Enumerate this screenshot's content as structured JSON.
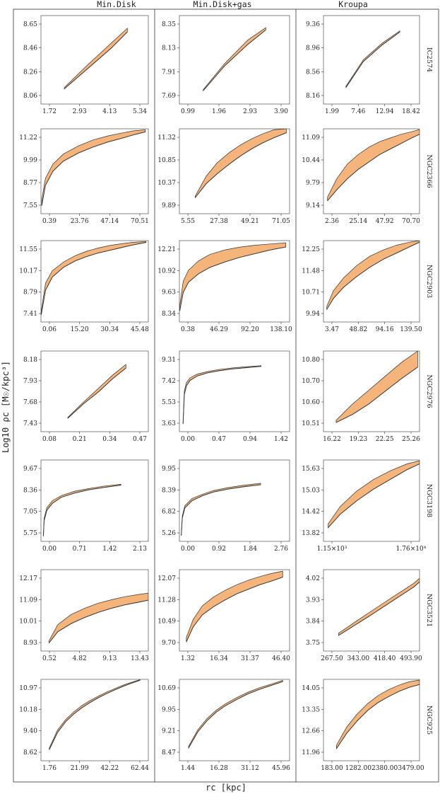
{
  "figure": {
    "column_titles": [
      "Min.Disk",
      "Min.Disk+gas",
      "Kroupa"
    ],
    "y_axis_title": "Log10 ρc [M☉/kpc³]",
    "x_axis_title": "rc [kpc]"
  },
  "colors": {
    "band_fill": "#f5b47a",
    "line": "#333333"
  },
  "chart_data": [
    {
      "type": "area",
      "galaxy": "IC2574",
      "column": "Min.Disk",
      "xticks": [
        "1.72",
        "2.93",
        "4.13",
        "5.34"
      ],
      "yticks": [
        "8.65",
        "8.46",
        "8.26",
        "8.06"
      ],
      "xlim": [
        1.2,
        5.8
      ],
      "ylim": [
        8.0,
        8.7
      ],
      "x": [
        2.2,
        3.2,
        4.2,
        4.9
      ],
      "y_low": [
        8.12,
        8.28,
        8.44,
        8.57
      ],
      "y_high": [
        8.13,
        8.31,
        8.48,
        8.6
      ]
    },
    {
      "type": "area",
      "galaxy": "IC2574",
      "column": "Min.Disk+gas",
      "xticks": [
        "0.99",
        "1.96",
        "2.93",
        "3.90"
      ],
      "yticks": [
        "8.35",
        "8.13",
        "7.91",
        "7.69"
      ],
      "xlim": [
        0.6,
        4.3
      ],
      "ylim": [
        7.62,
        8.42
      ],
      "x": [
        1.4,
        2.1,
        2.9,
        3.5
      ],
      "y_low": [
        7.74,
        7.96,
        8.16,
        8.29
      ],
      "y_high": [
        7.75,
        7.98,
        8.2,
        8.31
      ]
    },
    {
      "type": "area",
      "galaxy": "IC2574",
      "column": "Kroupa",
      "xticks": [
        "1.99",
        "7.46",
        "12.94",
        "18.42"
      ],
      "yticks": [
        "9.36",
        "8.96",
        "8.56",
        "8.16"
      ],
      "xlim": [
        0,
        20.5
      ],
      "ylim": [
        8.0,
        9.5
      ],
      "x": [
        4.8,
        8.5,
        12.5,
        16.3
      ],
      "y_low": [
        8.28,
        8.72,
        9.0,
        9.22
      ],
      "y_high": [
        8.3,
        8.75,
        9.03,
        9.24
      ]
    },
    {
      "type": "area",
      "galaxy": "NGC2366",
      "column": "Min.Disk",
      "xticks": [
        "0.39",
        "23.76",
        "47.14",
        "70.51"
      ],
      "yticks": [
        "11.22",
        "9.99",
        "8.77",
        "7.55"
      ],
      "xlim": [
        0,
        72
      ],
      "ylim": [
        7.2,
        11.4
      ],
      "x": [
        0.5,
        3,
        8,
        15,
        25,
        35,
        45,
        55,
        62,
        70
      ],
      "y_low": [
        7.6,
        8.6,
        9.3,
        9.8,
        10.2,
        10.5,
        10.75,
        10.95,
        11.1,
        11.25
      ],
      "y_high": [
        7.9,
        8.95,
        9.65,
        10.15,
        10.55,
        10.85,
        11.05,
        11.2,
        11.3,
        11.35
      ]
    },
    {
      "type": "area",
      "galaxy": "NGC2366",
      "column": "Min.Disk+gas",
      "xticks": [
        "5.55",
        "27.38",
        "49.21",
        "71.05"
      ],
      "yticks": [
        "11.32",
        "10.85",
        "10.37",
        "9.89"
      ],
      "xlim": [
        3,
        73
      ],
      "ylim": [
        9.7,
        11.4
      ],
      "x": [
        13,
        20,
        27,
        35,
        42,
        49,
        56,
        63,
        71
      ],
      "y_low": [
        10.02,
        10.3,
        10.5,
        10.7,
        10.86,
        11.0,
        11.12,
        11.22,
        11.32
      ],
      "y_high": [
        10.05,
        10.45,
        10.72,
        10.93,
        11.08,
        11.2,
        11.3,
        11.38,
        11.4
      ]
    },
    {
      "type": "area",
      "galaxy": "NGC2366",
      "column": "Kroupa",
      "xticks": [
        "2.36",
        "25.14",
        "47.92",
        "70.70"
      ],
      "yticks": [
        "11.09",
        "10.44",
        "9.79",
        "9.14"
      ],
      "xlim": [
        0,
        72
      ],
      "ylim": [
        8.9,
        11.2
      ],
      "x": [
        3,
        10,
        18,
        26,
        34,
        42,
        50,
        58,
        66,
        72
      ],
      "y_low": [
        9.25,
        9.55,
        9.85,
        10.1,
        10.3,
        10.5,
        10.65,
        10.8,
        10.95,
        11.05
      ],
      "y_high": [
        9.35,
        9.85,
        10.25,
        10.5,
        10.7,
        10.85,
        10.95,
        11.05,
        11.12,
        11.18
      ]
    },
    {
      "type": "area",
      "galaxy": "NGC2903",
      "column": "Min.Disk",
      "xticks": [
        "0.06",
        "15.20",
        "30.34",
        "45.48"
      ],
      "yticks": [
        "11.55",
        "10.17",
        "8.79",
        "7.41"
      ],
      "xlim": [
        0,
        47
      ],
      "ylim": [
        7.1,
        11.7
      ],
      "x": [
        0.1,
        2,
        5,
        10,
        15,
        20,
        25,
        30,
        35,
        40,
        46
      ],
      "y_low": [
        7.5,
        8.9,
        9.65,
        10.2,
        10.55,
        10.8,
        11.0,
        11.15,
        11.3,
        11.45,
        11.6
      ],
      "y_high": [
        7.7,
        9.3,
        10.0,
        10.5,
        10.85,
        11.1,
        11.28,
        11.42,
        11.52,
        11.6,
        11.65
      ]
    },
    {
      "type": "area",
      "galaxy": "NGC2903",
      "column": "Min.Disk+gas",
      "xticks": [
        "0.38",
        "46.29",
        "92.20",
        "138.10"
      ],
      "yticks": [
        "12.21",
        "10.92",
        "9.63",
        "8.34"
      ],
      "xlim": [
        0,
        145
      ],
      "ylim": [
        8.0,
        12.4
      ],
      "x": [
        0.5,
        5,
        12,
        25,
        40,
        60,
        80,
        100,
        120,
        140
      ],
      "y_low": [
        8.6,
        9.6,
        10.15,
        10.6,
        10.95,
        11.25,
        11.5,
        11.7,
        11.9,
        12.05
      ],
      "y_high": [
        8.9,
        10.2,
        10.8,
        11.3,
        11.65,
        11.9,
        12.05,
        12.15,
        12.22,
        12.28
      ]
    },
    {
      "type": "area",
      "galaxy": "NGC2903",
      "column": "Kroupa",
      "xticks": [
        "3.47",
        "48.82",
        "94.16",
        "139.50"
      ],
      "yticks": [
        "12.25",
        "11.48",
        "10.71",
        "9.94"
      ],
      "xlim": [
        0,
        145
      ],
      "ylim": [
        9.7,
        12.3
      ],
      "x": [
        5,
        15,
        30,
        50,
        70,
        90,
        110,
        130,
        145
      ],
      "y_low": [
        10.1,
        10.45,
        10.8,
        11.15,
        11.45,
        11.7,
        11.9,
        12.1,
        12.25
      ],
      "y_high": [
        10.2,
        10.7,
        11.1,
        11.5,
        11.8,
        12.0,
        12.15,
        12.25,
        12.3
      ]
    },
    {
      "type": "area",
      "galaxy": "NGC2976",
      "column": "Min.Disk",
      "xticks": [
        "0.08",
        "0.21",
        "0.34",
        "0.47"
      ],
      "yticks": [
        "8.18",
        "7.93",
        "7.68",
        "7.43"
      ],
      "xlim": [
        0.02,
        0.5
      ],
      "ylim": [
        7.35,
        8.25
      ],
      "x": [
        0.14,
        0.21,
        0.28,
        0.34,
        0.4
      ],
      "y_low": [
        7.5,
        7.66,
        7.8,
        7.94,
        8.06
      ],
      "y_high": [
        7.51,
        7.68,
        7.84,
        7.98,
        8.1
      ]
    },
    {
      "type": "area",
      "galaxy": "NGC2976",
      "column": "Min.Disk+gas",
      "xticks": [
        "0.00",
        "0.47",
        "0.94",
        "1.42"
      ],
      "yticks": [
        "9.31",
        "7.42",
        "5.53",
        "3.63"
      ],
      "xlim": [
        -0.05,
        1.5
      ],
      "ylim": [
        3.3,
        9.6
      ],
      "x": [
        0.002,
        0.02,
        0.05,
        0.1,
        0.2,
        0.35,
        0.5,
        0.7,
        0.9,
        1.1
      ],
      "y_low": [
        3.9,
        6.2,
        6.9,
        7.3,
        7.65,
        7.9,
        8.05,
        8.2,
        8.3,
        8.4
      ],
      "y_high": [
        4.1,
        6.5,
        7.15,
        7.5,
        7.8,
        8.0,
        8.15,
        8.28,
        8.38,
        8.45
      ]
    },
    {
      "type": "area",
      "galaxy": "NGC2976",
      "column": "Kroupa",
      "xticks": [
        "16.22",
        "19.23",
        "22.25",
        "25.26"
      ],
      "yticks": [
        "10.80",
        "10.70",
        "10.60",
        "10.51"
      ],
      "xlim": [
        15.2,
        25.8
      ],
      "ylim": [
        10.48,
        10.83
      ],
      "x": [
        16.6,
        18.4,
        20.2,
        22.0,
        23.8,
        25.6
      ],
      "y_low": [
        10.52,
        10.555,
        10.6,
        10.655,
        10.71,
        10.76
      ],
      "y_high": [
        10.53,
        10.6,
        10.66,
        10.72,
        10.78,
        10.83
      ]
    },
    {
      "type": "area",
      "galaxy": "NGC3198",
      "column": "Min.Disk",
      "xticks": [
        "0.00",
        "0.71",
        "1.42",
        "2.13"
      ],
      "yticks": [
        "9.67",
        "8.36",
        "7.05",
        "5.75"
      ],
      "xlim": [
        -0.05,
        2.3
      ],
      "ylim": [
        5.4,
        10.1
      ],
      "x": [
        0.002,
        0.02,
        0.08,
        0.2,
        0.4,
        0.7,
        1.0,
        1.3,
        1.7
      ],
      "y_low": [
        5.7,
        6.6,
        7.2,
        7.6,
        7.95,
        8.2,
        8.38,
        8.5,
        8.65
      ],
      "y_high": [
        5.8,
        6.75,
        7.35,
        7.75,
        8.05,
        8.3,
        8.45,
        8.58,
        8.7
      ]
    },
    {
      "type": "area",
      "galaxy": "NGC3198",
      "column": "Min.Disk+gas",
      "xticks": [
        "0.00",
        "0.92",
        "1.84",
        "2.76"
      ],
      "yticks": [
        "9.95",
        "8.39",
        "6.82",
        "5.26"
      ],
      "xlim": [
        -0.05,
        3.0
      ],
      "ylim": [
        4.9,
        10.5
      ],
      "x": [
        0.002,
        0.03,
        0.1,
        0.3,
        0.6,
        0.9,
        1.3,
        1.7,
        2.2
      ],
      "y_low": [
        5.3,
        6.5,
        7.2,
        7.7,
        8.05,
        8.3,
        8.5,
        8.65,
        8.8
      ],
      "y_high": [
        5.4,
        6.65,
        7.35,
        7.85,
        8.15,
        8.4,
        8.6,
        8.75,
        8.9
      ]
    },
    {
      "type": "area",
      "galaxy": "NGC3198",
      "column": "Kroupa",
      "xticks": [
        "1.15×10³",
        "1.76×10⁴"
      ],
      "yticks": [
        "15.63",
        "15.03",
        "14.42",
        "13.82"
      ],
      "xlim": [
        0,
        23000
      ],
      "ylim": [
        13.6,
        15.7
      ],
      "x": [
        1100,
        4000,
        8000,
        12000,
        16000,
        20000,
        23000
      ],
      "y_low": [
        13.95,
        14.3,
        14.65,
        14.95,
        15.2,
        15.45,
        15.6
      ],
      "y_high": [
        14.05,
        14.5,
        14.9,
        15.2,
        15.42,
        15.6,
        15.68
      ]
    },
    {
      "type": "area",
      "galaxy": "NGC3521",
      "column": "Min.Disk",
      "xticks": [
        "0.52",
        "4.82",
        "9.13",
        "13.43"
      ],
      "yticks": [
        "12.17",
        "11.09",
        "10.01",
        "8.93"
      ],
      "xlim": [
        -0.5,
        15.5
      ],
      "ylim": [
        8.6,
        12.6
      ],
      "x": [
        0.7,
        2,
        4,
        6,
        8,
        10,
        12,
        14,
        15.5
      ],
      "y_low": [
        9.0,
        9.55,
        9.95,
        10.25,
        10.5,
        10.7,
        10.87,
        11.0,
        11.1
      ],
      "y_high": [
        9.1,
        9.9,
        10.4,
        10.7,
        10.95,
        11.12,
        11.27,
        11.38,
        11.45
      ]
    },
    {
      "type": "area",
      "galaxy": "NGC3521",
      "column": "Min.Disk+gas",
      "xticks": [
        "1.32",
        "16.34",
        "31.37",
        "46.40"
      ],
      "yticks": [
        "12.07",
        "11.28",
        "10.49",
        "9.70"
      ],
      "xlim": [
        0,
        48
      ],
      "ylim": [
        9.5,
        12.2
      ],
      "x": [
        3,
        6,
        10,
        15,
        20,
        25,
        30,
        35,
        40,
        45
      ],
      "y_low": [
        9.8,
        10.3,
        10.7,
        10.98,
        11.2,
        11.4,
        11.55,
        11.7,
        11.82,
        11.95
      ],
      "y_high": [
        9.95,
        10.55,
        11.0,
        11.3,
        11.52,
        11.7,
        11.85,
        11.97,
        12.07,
        12.15
      ]
    },
    {
      "type": "area",
      "galaxy": "NGC3521",
      "column": "Kroupa",
      "xticks": [
        "267.50",
        "343.00",
        "418.40",
        "493.90"
      ],
      "yticks": [
        "4.02",
        "3.93",
        "3.84",
        "3.75"
      ],
      "xlim": [
        250,
        505
      ],
      "ylim": [
        3.72,
        4.05
      ],
      "x": [
        290,
        330,
        370,
        410,
        450,
        490,
        505
      ],
      "y_low": [
        3.783,
        3.822,
        3.86,
        3.9,
        3.94,
        3.98,
        4.0
      ],
      "y_high": [
        3.792,
        3.834,
        3.875,
        3.915,
        3.955,
        3.995,
        4.015
      ]
    },
    {
      "type": "area",
      "galaxy": "NGC925",
      "column": "Min.Disk",
      "xticks": [
        "1.76",
        "21.99",
        "42.22",
        "62.44"
      ],
      "yticks": [
        "10.97",
        "10.18",
        "9.40",
        "8.62"
      ],
      "xlim": [
        0,
        65
      ],
      "ylim": [
        8.4,
        11.0
      ],
      "x": [
        5,
        10,
        15,
        20,
        25,
        30,
        35,
        40,
        45,
        50,
        55,
        60
      ],
      "y_low": [
        8.75,
        9.3,
        9.65,
        9.9,
        10.1,
        10.27,
        10.42,
        10.55,
        10.67,
        10.78,
        10.88,
        10.97
      ],
      "y_high": [
        8.8,
        9.38,
        9.72,
        9.97,
        10.17,
        10.33,
        10.47,
        10.6,
        10.71,
        10.82,
        10.91,
        10.99
      ]
    },
    {
      "type": "area",
      "galaxy": "NGC925",
      "column": "Min.Disk+gas",
      "xticks": [
        "1.44",
        "16.28",
        "31.12",
        "45.96"
      ],
      "yticks": [
        "10.69",
        "9.95",
        "9.21",
        "8.47"
      ],
      "xlim": [
        0,
        48
      ],
      "ylim": [
        8.2,
        10.75
      ],
      "x": [
        4,
        8,
        12,
        16,
        20,
        25,
        30,
        35,
        40,
        45
      ],
      "y_low": [
        8.6,
        9.1,
        9.45,
        9.72,
        9.92,
        10.12,
        10.3,
        10.44,
        10.56,
        10.68
      ],
      "y_high": [
        8.65,
        9.17,
        9.52,
        9.78,
        9.98,
        10.18,
        10.35,
        10.49,
        10.6,
        10.72
      ]
    },
    {
      "type": "area",
      "galaxy": "NGC925",
      "column": "Kroupa",
      "xticks": [
        "183.00",
        "1282.00",
        "2380.00",
        "3479.00"
      ],
      "yticks": [
        "14.05",
        "13.35",
        "12.66",
        "11.96"
      ],
      "xlim": [
        0,
        3700
      ],
      "ylim": [
        11.8,
        14.15
      ],
      "x": [
        500,
        900,
        1300,
        1700,
        2100,
        2500,
        2900,
        3300,
        3700
      ],
      "y_low": [
        12.15,
        12.6,
        12.95,
        13.25,
        13.48,
        13.65,
        13.8,
        13.92,
        14.0
      ],
      "y_high": [
        12.25,
        12.78,
        13.15,
        13.45,
        13.68,
        13.85,
        13.98,
        14.08,
        14.13
      ]
    }
  ]
}
